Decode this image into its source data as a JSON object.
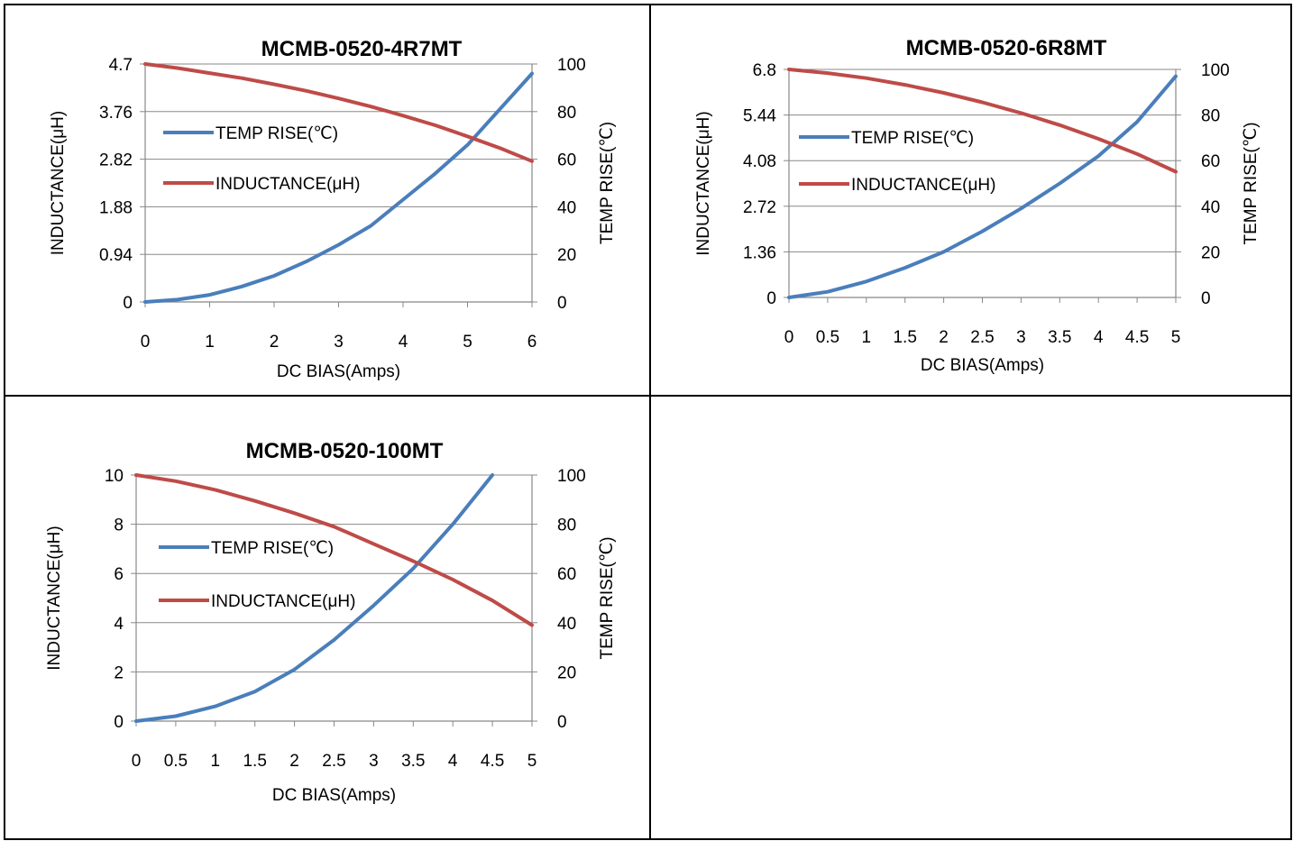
{
  "colors": {
    "temp_rise": "#4a7ebb",
    "inductance": "#be4b48",
    "gridline": "#888888"
  },
  "chart_data": [
    {
      "type": "line",
      "title": "MCMB-0520-4R7MT",
      "xlabel": "DC  BIAS(Amps)",
      "ylabel_left": "INDUCTANCE(μH)",
      "ylabel_right": "TEMP RISE(℃)",
      "xlim": [
        0,
        6
      ],
      "xticks": [
        "0",
        "1",
        "2",
        "3",
        "4",
        "5",
        "6"
      ],
      "ylim_left": [
        0,
        4.7
      ],
      "yticks_left": [
        "0",
        "0.94",
        "1.88",
        "2.82",
        "3.76",
        "4.7"
      ],
      "ylim_right": [
        0,
        100
      ],
      "yticks_right": [
        "0",
        "20",
        "40",
        "60",
        "80",
        "100"
      ],
      "grid": true,
      "legend": "left",
      "series": [
        {
          "name": "TEMP RISE(℃)",
          "axis": "right",
          "x": [
            0,
            0.5,
            1,
            1.5,
            2,
            2.5,
            3,
            3.5,
            4,
            4.5,
            5,
            5.5,
            6
          ],
          "y": [
            0,
            1,
            3,
            6.5,
            11,
            17,
            24,
            32,
            43,
            54,
            66,
            81,
            96
          ]
        },
        {
          "name": "INDUCTANCE(μH)",
          "axis": "left",
          "x": [
            0,
            0.5,
            1,
            1.5,
            2,
            2.5,
            3,
            3.5,
            4,
            4.5,
            5,
            5.5,
            6
          ],
          "y": [
            4.7,
            4.62,
            4.52,
            4.42,
            4.3,
            4.17,
            4.02,
            3.86,
            3.68,
            3.49,
            3.27,
            3.04,
            2.78
          ]
        }
      ]
    },
    {
      "type": "line",
      "title": "MCMB-0520-6R8MT",
      "xlabel": "DC  BIAS(Amps)",
      "ylabel_left": "INDUCTANCE(μH)",
      "ylabel_right": "TEMP RISE(℃)",
      "xlim": [
        0,
        5
      ],
      "xticks": [
        "0",
        "0.5",
        "1",
        "1.5",
        "2",
        "2.5",
        "3",
        "3.5",
        "4",
        "4.5",
        "5"
      ],
      "ylim_left": [
        0,
        6.8
      ],
      "yticks_left": [
        "0",
        "1.36",
        "2.72",
        "4.08",
        "5.44",
        "6.8"
      ],
      "ylim_right": [
        0,
        100
      ],
      "yticks_right": [
        "0",
        "20",
        "40",
        "60",
        "80",
        "100"
      ],
      "grid": true,
      "legend": "left",
      "series": [
        {
          "name": "TEMP RISE(℃)",
          "axis": "right",
          "x": [
            0,
            0.5,
            1,
            1.5,
            2,
            2.5,
            3,
            3.5,
            4,
            4.5,
            5
          ],
          "y": [
            0,
            2.5,
            7,
            13,
            20,
            29,
            39,
            50,
            62,
            77,
            97
          ]
        },
        {
          "name": "INDUCTANCE(μH)",
          "axis": "left",
          "x": [
            0,
            0.5,
            1,
            1.5,
            2,
            2.5,
            3,
            3.5,
            4,
            4.5,
            5
          ],
          "y": [
            6.8,
            6.69,
            6.54,
            6.34,
            6.1,
            5.82,
            5.5,
            5.14,
            4.73,
            4.28,
            3.75
          ]
        }
      ]
    },
    {
      "type": "line",
      "title": "MCMB-0520-100MT",
      "xlabel": "DC  BIAS(Amps)",
      "ylabel_left": "INDUCTANCE(μH)",
      "ylabel_right": "TEMP RISE(℃)",
      "xlim": [
        0,
        5
      ],
      "xticks": [
        "0",
        "0.5",
        "1",
        "1.5",
        "2",
        "2.5",
        "3",
        "3.5",
        "4",
        "4.5",
        "5"
      ],
      "ylim_left": [
        0,
        10
      ],
      "yticks_left": [
        "0",
        "2",
        "4",
        "6",
        "8",
        "10"
      ],
      "ylim_right": [
        0,
        100
      ],
      "yticks_right": [
        "0",
        "20",
        "40",
        "60",
        "80",
        "100"
      ],
      "grid": true,
      "legend": "left",
      "series": [
        {
          "name": "TEMP RISE(℃)",
          "axis": "right",
          "x": [
            0,
            0.5,
            1,
            1.5,
            2,
            2.5,
            3,
            3.5,
            4,
            4.5
          ],
          "y": [
            0,
            2,
            6,
            12,
            21,
            33,
            47,
            62,
            80,
            100
          ]
        },
        {
          "name": "INDUCTANCE(μH)",
          "axis": "left",
          "x": [
            0,
            0.5,
            1,
            1.5,
            2,
            2.5,
            3,
            3.5,
            4,
            4.5,
            5
          ],
          "y": [
            10,
            9.75,
            9.4,
            8.95,
            8.45,
            7.9,
            7.2,
            6.5,
            5.75,
            4.9,
            3.9
          ]
        }
      ]
    }
  ]
}
